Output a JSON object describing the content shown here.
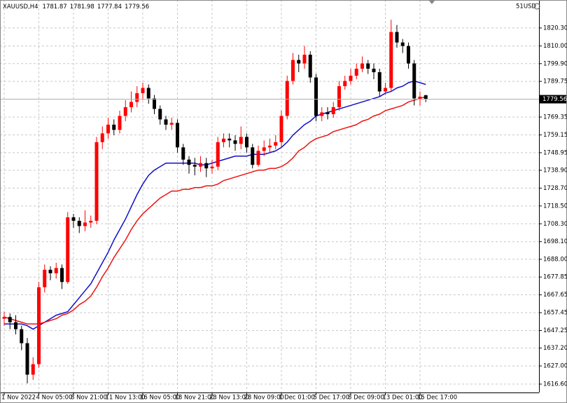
{
  "chart_data": {
    "type": "candlestick",
    "symbol": "XAUUSD,H4",
    "corner_label": "51USD",
    "categories": [
      "1 Nov 2022",
      null,
      null,
      null,
      null,
      null,
      "4 Nov 05:00",
      null,
      null,
      null,
      null,
      null,
      "8 Nov 21:00",
      null,
      null,
      null,
      null,
      null,
      "11 Nov 13:00",
      null,
      null,
      null,
      null,
      null,
      "16 Nov 05:00",
      null,
      null,
      null,
      null,
      null,
      "18 Nov 21:00",
      null,
      null,
      null,
      null,
      null,
      "23 Nov 13:00",
      null,
      null,
      null,
      null,
      null,
      "28 Nov 09:00",
      null,
      null,
      null,
      null,
      null,
      "1 Dec 01:00",
      null,
      null,
      null,
      null,
      null,
      "5 Dec 17:00",
      null,
      null,
      null,
      null,
      null,
      "8 Dec 09:00",
      null,
      null,
      null,
      null,
      null,
      "13 Dec 01:00",
      null,
      null,
      null,
      null,
      null,
      "15 Dec 17:00",
      null
    ],
    "candles": {
      "up_color": "#ff0000",
      "down_color": "#000000",
      "open": [
        1654,
        1655,
        1652,
        1648,
        1640,
        1622,
        1628,
        1672,
        1682,
        1680,
        1683,
        1675,
        1712,
        1710,
        1707,
        1709,
        1710,
        1755,
        1760,
        1765,
        1762,
        1770,
        1775,
        1778,
        1783,
        1786,
        1780,
        1774,
        1768,
        1765,
        1766,
        1752,
        1745,
        1742,
        1741,
        1743,
        1740,
        1741,
        1755,
        1757,
        1756,
        1754,
        1758,
        1752,
        1742,
        1750,
        1752,
        1753,
        1755,
        1770,
        1790,
        1802,
        1800,
        1805,
        1792,
        1770,
        1772,
        1771,
        1775,
        1787,
        1790,
        1793,
        1797,
        1800,
        1797,
        1795,
        1784,
        1786,
        1818,
        1812,
        1810,
        1800,
        1780,
        1781.87
      ],
      "high": [
        1658,
        1657,
        1656,
        1650,
        1643,
        1632,
        1675,
        1685,
        1684,
        1686,
        1685,
        1715,
        1714,
        1712,
        1716,
        1713,
        1758,
        1764,
        1769,
        1768,
        1773,
        1779,
        1784,
        1787,
        1789,
        1788,
        1782,
        1776,
        1770,
        1769,
        1768,
        1754,
        1747,
        1746,
        1747,
        1746,
        1745,
        1758,
        1760,
        1760,
        1759,
        1764,
        1760,
        1754,
        1753,
        1756,
        1757,
        1759,
        1773,
        1793,
        1806,
        1805,
        1810,
        1807,
        1794,
        1775,
        1775,
        1778,
        1790,
        1793,
        1797,
        1800,
        1804,
        1802,
        1800,
        1797,
        1789,
        1825,
        1822,
        1814,
        1812,
        1802,
        1784,
        1781.98
      ],
      "low": [
        1650,
        1648,
        1645,
        1636,
        1617,
        1619,
        1626,
        1669,
        1676,
        1677,
        1671,
        1674,
        1706,
        1703,
        1704,
        1706,
        1708,
        1751,
        1757,
        1759,
        1760,
        1767,
        1772,
        1775,
        1779,
        1777,
        1771,
        1765,
        1762,
        1762,
        1749,
        1742,
        1737,
        1736,
        1738,
        1735,
        1737,
        1739,
        1752,
        1752,
        1750,
        1751,
        1749,
        1740,
        1741,
        1747,
        1749,
        1751,
        1752,
        1768,
        1788,
        1795,
        1797,
        1789,
        1767,
        1767,
        1768,
        1769,
        1773,
        1785,
        1788,
        1791,
        1795,
        1794,
        1791,
        1781,
        1782,
        1784,
        1809,
        1806,
        1797,
        1776,
        1776,
        1777.84
      ],
      "close": [
        1655,
        1652,
        1648,
        1640,
        1622,
        1628,
        1672,
        1682,
        1680,
        1683,
        1675,
        1712,
        1710,
        1707,
        1709,
        1710,
        1755,
        1760,
        1765,
        1762,
        1770,
        1775,
        1778,
        1783,
        1786,
        1780,
        1774,
        1768,
        1765,
        1766,
        1752,
        1745,
        1742,
        1741,
        1743,
        1740,
        1741,
        1755,
        1757,
        1756,
        1754,
        1758,
        1752,
        1742,
        1750,
        1752,
        1753,
        1755,
        1770,
        1790,
        1802,
        1800,
        1805,
        1792,
        1770,
        1772,
        1771,
        1775,
        1787,
        1790,
        1793,
        1797,
        1800,
        1797,
        1795,
        1784,
        1786,
        1818,
        1812,
        1810,
        1800,
        1780,
        1781,
        1779.56
      ]
    },
    "lines": [
      {
        "color": "#1010c8",
        "values": [
          1651,
          1651,
          1651,
          1651,
          1650,
          1648,
          1650,
          1652,
          1654,
          1656,
          1657,
          1658,
          1662,
          1666,
          1670,
          1674,
          1680,
          1686,
          1692,
          1699,
          1705,
          1711,
          1718,
          1725,
          1731,
          1736,
          1739,
          1741,
          1743,
          1743,
          1743,
          1743,
          1743,
          1743,
          1742,
          1742,
          1743,
          1744,
          1745,
          1746,
          1747,
          1747,
          1747,
          1748,
          1748,
          1748,
          1749,
          1750,
          1752,
          1755,
          1759,
          1762,
          1765,
          1767,
          1770,
          1771,
          1772,
          1773,
          1774,
          1775,
          1776,
          1777,
          1778,
          1779,
          1780,
          1781,
          1783,
          1784,
          1786,
          1787,
          1789,
          1790,
          1789,
          1788
        ]
      },
      {
        "color": "#ee1111",
        "values": [
          1655,
          1654,
          1653,
          1652,
          1651,
          1651,
          1651,
          1652,
          1653,
          1654,
          1656,
          1657,
          1659,
          1662,
          1664,
          1667,
          1672,
          1678,
          1683,
          1689,
          1694,
          1699,
          1705,
          1710,
          1714,
          1717,
          1720,
          1723,
          1725,
          1727,
          1727,
          1728,
          1728,
          1729,
          1729,
          1730,
          1730,
          1731,
          1733,
          1734,
          1735,
          1736,
          1737,
          1738,
          1739,
          1739,
          1740,
          1740,
          1741,
          1743,
          1746,
          1750,
          1752,
          1755,
          1757,
          1758,
          1759,
          1761,
          1762,
          1763,
          1764,
          1765,
          1767,
          1768,
          1770,
          1771,
          1773,
          1774,
          1775,
          1776,
          1778,
          1779,
          1780,
          1781
        ]
      }
    ],
    "ylim": [
      1611.8,
      1836.3
    ],
    "yticks": [
      {
        "value": 1616.6,
        "label": "1616.60"
      },
      {
        "value": 1627,
        "label": "1627.00"
      },
      {
        "value": 1637.2,
        "label": "1637.20"
      },
      {
        "value": 1647.25,
        "label": "1647.25"
      },
      {
        "value": 1657.45,
        "label": "1657.45"
      },
      {
        "value": 1667.65,
        "label": "1667.65"
      },
      {
        "value": 1677.85,
        "label": "1677.85"
      },
      {
        "value": 1688,
        "label": "1688.00"
      },
      {
        "value": 1698.1,
        "label": "1698.10"
      },
      {
        "value": 1708.3,
        "label": "1708.30"
      },
      {
        "value": 1718.5,
        "label": "1718.50"
      },
      {
        "value": 1728.7,
        "label": "1728.70"
      },
      {
        "value": 1738.9,
        "label": "1738.90"
      },
      {
        "value": 1748.95,
        "label": "1748.95"
      },
      {
        "value": 1759.15,
        "label": "1759.15"
      },
      {
        "value": 1769.35,
        "label": "1769.35"
      },
      {
        "value": 1789.75,
        "label": "1789.75"
      },
      {
        "value": 1799.9,
        "label": "1799.90"
      },
      {
        "value": 1810,
        "label": "1810.00"
      },
      {
        "value": 1820.3,
        "label": "1820.30"
      }
    ],
    "grid": true
  }
}
